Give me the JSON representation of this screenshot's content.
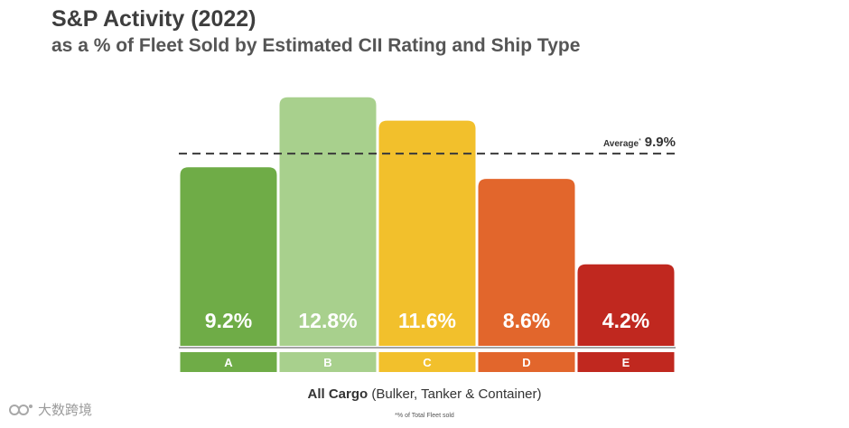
{
  "header": {
    "title": "S&P Activity (2022)",
    "subtitle": "as a % of Fleet Sold by Estimated CII Rating and Ship Type"
  },
  "xlabel": {
    "bold": "All Cargo",
    "rest": " (Bulker, Tanker & Container)"
  },
  "footnote": "*% of Total Fleet sold",
  "watermark": "大数跨境",
  "chart_data": {
    "type": "bar",
    "title": "S&P Activity (2022)",
    "subtitle": "as a % of Fleet Sold by Estimated CII Rating and Ship Type",
    "categories": [
      "A",
      "B",
      "C",
      "D",
      "E"
    ],
    "values": [
      9.2,
      12.8,
      11.6,
      8.6,
      4.2
    ],
    "value_labels": [
      "9.2%",
      "12.8%",
      "11.6%",
      "8.6%",
      "4.2%"
    ],
    "colors": [
      "#6fac47",
      "#a8d08d",
      "#f2c02c",
      "#e2662c",
      "#c0281f"
    ],
    "category_band_colors": [
      "#6fac47",
      "#a8d08d",
      "#f2c02c",
      "#e2662c",
      "#c0281f"
    ],
    "average": {
      "value": 9.9,
      "label": "Average",
      "label_suffix": "*",
      "value_label": "9.9%"
    },
    "xlabel": "All Cargo (Bulker, Tanker & Container)",
    "ylabel": "",
    "ylim": [
      0,
      14
    ],
    "grid": false,
    "legend": "none"
  }
}
